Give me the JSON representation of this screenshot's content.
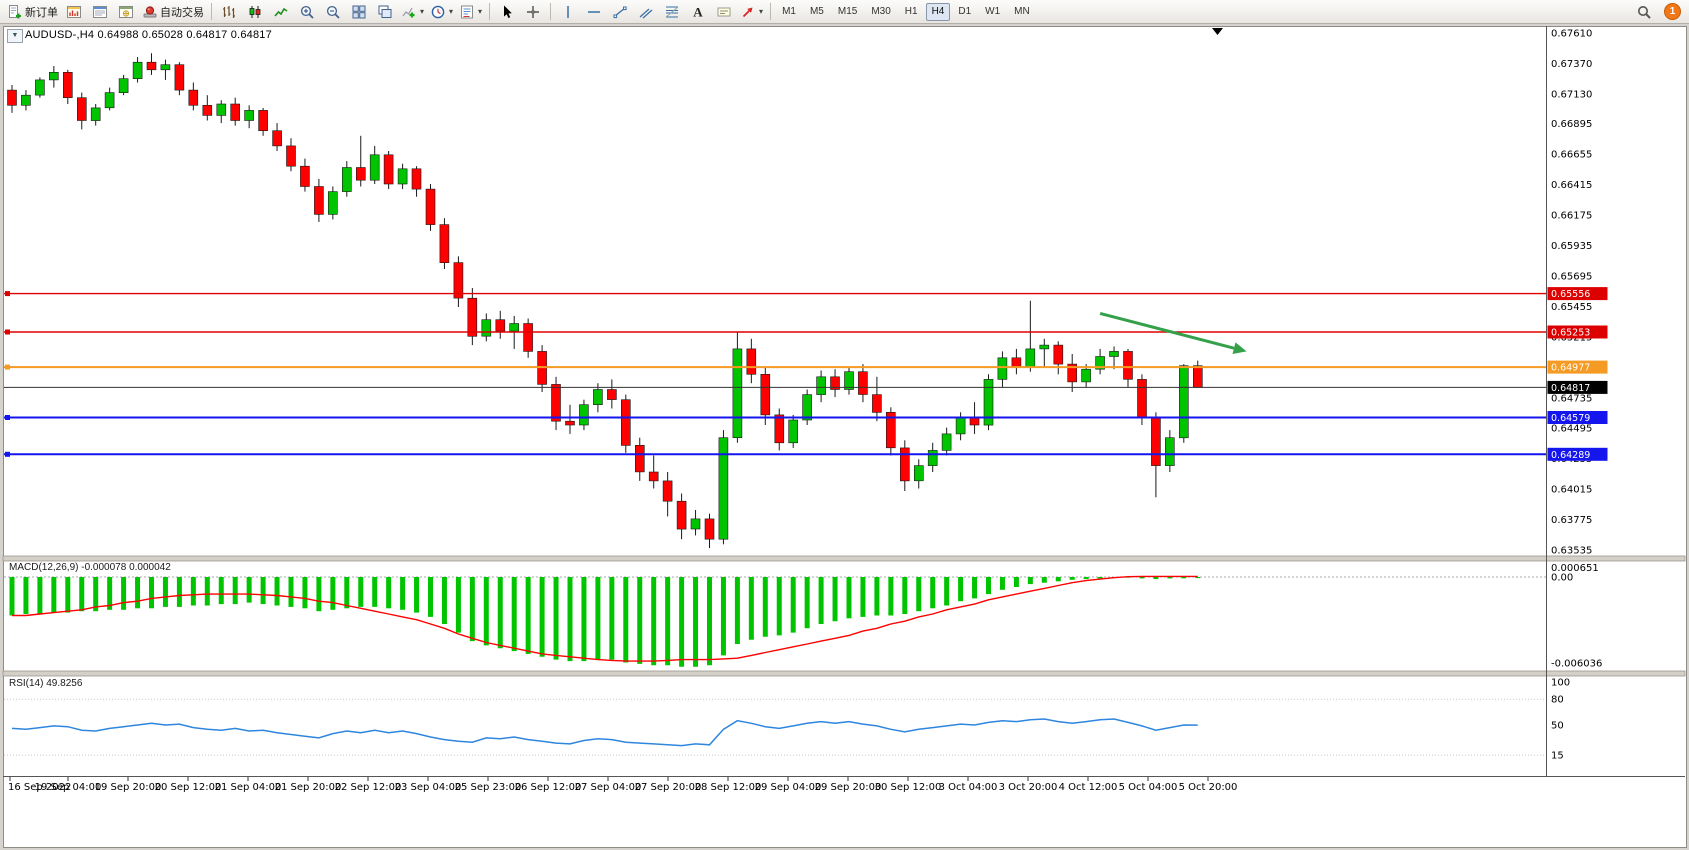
{
  "icons": {
    "dropdown_caret": "▾",
    "one_click_caret": "▼"
  },
  "toolbar": {
    "left_items": [
      {
        "type": "labeled-button",
        "name": "new-order-button",
        "icon": "new-order-icon",
        "label": "新订单"
      },
      {
        "type": "button",
        "name": "market-watch-button",
        "icon": "market-watch-icon"
      },
      {
        "type": "button",
        "name": "data-window-button",
        "icon": "data-window-icon"
      },
      {
        "type": "button",
        "name": "navigator-button",
        "icon": "navigator-icon"
      },
      {
        "type": "labeled-button",
        "name": "auto-trading-button",
        "icon": "auto-trading-icon",
        "label": "自动交易"
      },
      {
        "type": "separator"
      },
      {
        "type": "button",
        "name": "bar-chart-button",
        "icon": "bar-chart-icon"
      },
      {
        "type": "button",
        "name": "candlestick-chart-button",
        "icon": "candlestick-icon"
      },
      {
        "type": "button",
        "name": "line-chart-button",
        "icon": "line-chart-icon"
      },
      {
        "type": "button",
        "name": "zoom-in-button",
        "icon": "zoom-in-icon"
      },
      {
        "type": "button",
        "name": "zoom-out-button",
        "icon": "zoom-out-icon"
      },
      {
        "type": "button",
        "name": "tile-windows-button",
        "icon": "tile-windows-icon"
      },
      {
        "type": "button",
        "name": "cascade-windows-button",
        "icon": "cascade-windows-icon"
      },
      {
        "type": "dropdown-button",
        "name": "indicators-button",
        "icon": "indicators-icon"
      },
      {
        "type": "dropdown-button",
        "name": "periods-button",
        "icon": "clock-icon"
      },
      {
        "type": "dropdown-button",
        "name": "templates-button",
        "icon": "template-icon"
      },
      {
        "type": "separator"
      },
      {
        "type": "button",
        "name": "cursor-button",
        "icon": "cursor-icon"
      },
      {
        "type": "button",
        "name": "crosshair-button",
        "icon": "crosshair-icon"
      },
      {
        "type": "separator"
      },
      {
        "type": "button",
        "name": "vertical-line-button",
        "icon": "vertical-line-icon"
      },
      {
        "type": "button",
        "name": "horizontal-line-button",
        "icon": "horizontal-line-icon"
      },
      {
        "type": "button",
        "name": "trendline-button",
        "icon": "trendline-icon"
      },
      {
        "type": "button",
        "name": "channel-button",
        "icon": "channel-icon"
      },
      {
        "type": "button",
        "name": "fibonacci-button",
        "icon": "fibonacci-icon"
      },
      {
        "type": "button",
        "name": "text-button",
        "icon": "text-icon"
      },
      {
        "type": "button",
        "name": "text-label-button",
        "icon": "text-label-icon"
      },
      {
        "type": "dropdown-button",
        "name": "arrows-button",
        "icon": "arrow-shape-icon"
      },
      {
        "type": "separator"
      }
    ],
    "timeframes": [
      {
        "label": "M1"
      },
      {
        "label": "M5"
      },
      {
        "label": "M15"
      },
      {
        "label": "M30"
      },
      {
        "label": "H1"
      },
      {
        "label": "H4",
        "active": true
      },
      {
        "label": "D1"
      },
      {
        "label": "W1"
      },
      {
        "label": "MN"
      }
    ],
    "right": {
      "search_icon": "search-icon",
      "badge_count": "1"
    }
  },
  "chart_data": [
    {
      "name": "price",
      "type": "candlestick",
      "symbol": "AUDUSD-",
      "timeframe": "H4",
      "title": "AUDUSD-,H4  0.64988 0.65028 0.64817 0.64817",
      "up_color": "#00c400",
      "down_color": "#ff0000",
      "wick_color": "#1a1a1a",
      "y_axis_labels": [
        "0.67610",
        "0.67370",
        "0.67130",
        "0.66895",
        "0.66655",
        "0.66415",
        "0.66175",
        "0.65935",
        "0.65695",
        "0.65455",
        "0.65215",
        "0.64975",
        "0.64735",
        "0.64495",
        "0.64255",
        "0.64015",
        "0.63775",
        "0.63535"
      ],
      "ylim": [
        0.63535,
        0.6761
      ],
      "x_labels": [
        "16 Sep 2022",
        "19 Sep 04:00",
        "19 Sep 20:00",
        "20 Sep 12:00",
        "21 Sep 04:00",
        "21 Sep 20:00",
        "22 Sep 12:00",
        "23 Sep 04:00",
        "25 Sep 23:00",
        "26 Sep 12:00",
        "27 Sep 04:00",
        "27 Sep 20:00",
        "28 Sep 12:00",
        "29 Sep 04:00",
        "29 Sep 20:00",
        "30 Sep 12:00",
        "3 Oct 04:00",
        "3 Oct 20:00",
        "4 Oct 12:00",
        "5 Oct 04:00",
        "5 Oct 20:00"
      ],
      "candles_ohlc": [
        [
          0.6716,
          0.672,
          0.6698,
          0.6704
        ],
        [
          0.6704,
          0.6716,
          0.67,
          0.6712
        ],
        [
          0.6712,
          0.6726,
          0.671,
          0.6724
        ],
        [
          0.6724,
          0.6735,
          0.6718,
          0.673
        ],
        [
          0.673,
          0.6732,
          0.6705,
          0.671
        ],
        [
          0.671,
          0.6714,
          0.6685,
          0.6692
        ],
        [
          0.6692,
          0.6705,
          0.6688,
          0.6702
        ],
        [
          0.6702,
          0.6718,
          0.67,
          0.6714
        ],
        [
          0.6714,
          0.6728,
          0.6712,
          0.6725
        ],
        [
          0.6725,
          0.6742,
          0.6722,
          0.6738
        ],
        [
          0.6738,
          0.6745,
          0.6728,
          0.6732
        ],
        [
          0.6732,
          0.674,
          0.6724,
          0.6736
        ],
        [
          0.6736,
          0.6738,
          0.6712,
          0.6716
        ],
        [
          0.6716,
          0.6722,
          0.67,
          0.6704
        ],
        [
          0.6704,
          0.6712,
          0.6692,
          0.6696
        ],
        [
          0.6696,
          0.6708,
          0.669,
          0.6705
        ],
        [
          0.6705,
          0.671,
          0.6688,
          0.6692
        ],
        [
          0.6692,
          0.6704,
          0.6686,
          0.67
        ],
        [
          0.67,
          0.6702,
          0.668,
          0.6684
        ],
        [
          0.6684,
          0.669,
          0.6668,
          0.6672
        ],
        [
          0.6672,
          0.6678,
          0.6652,
          0.6656
        ],
        [
          0.6656,
          0.6662,
          0.6636,
          0.664
        ],
        [
          0.664,
          0.6646,
          0.6612,
          0.6618
        ],
        [
          0.6618,
          0.664,
          0.6614,
          0.6636
        ],
        [
          0.6636,
          0.666,
          0.6632,
          0.6655
        ],
        [
          0.6655,
          0.668,
          0.664,
          0.6645
        ],
        [
          0.6645,
          0.6672,
          0.6642,
          0.6665
        ],
        [
          0.6665,
          0.6668,
          0.6638,
          0.6642
        ],
        [
          0.6642,
          0.6658,
          0.6638,
          0.6654
        ],
        [
          0.6654,
          0.6656,
          0.6632,
          0.6638
        ],
        [
          0.6638,
          0.6642,
          0.6605,
          0.661
        ],
        [
          0.661,
          0.6615,
          0.6575,
          0.658
        ],
        [
          0.658,
          0.6585,
          0.6545,
          0.6552
        ],
        [
          0.6552,
          0.656,
          0.6515,
          0.6522
        ],
        [
          0.6522,
          0.654,
          0.6518,
          0.6535
        ],
        [
          0.6535,
          0.6542,
          0.652,
          0.6526
        ],
        [
          0.6526,
          0.6538,
          0.6512,
          0.6532
        ],
        [
          0.6532,
          0.6536,
          0.6505,
          0.651
        ],
        [
          0.651,
          0.6515,
          0.6478,
          0.6484
        ],
        [
          0.6484,
          0.649,
          0.6448,
          0.6455
        ],
        [
          0.6455,
          0.6468,
          0.6445,
          0.6452
        ],
        [
          0.6452,
          0.6472,
          0.6448,
          0.6468
        ],
        [
          0.6468,
          0.6485,
          0.6462,
          0.648
        ],
        [
          0.648,
          0.6488,
          0.6465,
          0.6472
        ],
        [
          0.6472,
          0.6476,
          0.643,
          0.6436
        ],
        [
          0.6436,
          0.6442,
          0.6408,
          0.6415
        ],
        [
          0.6415,
          0.6428,
          0.6402,
          0.6408
        ],
        [
          0.6408,
          0.6415,
          0.638,
          0.6392
        ],
        [
          0.6392,
          0.6398,
          0.6362,
          0.637
        ],
        [
          0.637,
          0.6385,
          0.6365,
          0.6378
        ],
        [
          0.6378,
          0.6382,
          0.6355,
          0.6362
        ],
        [
          0.6362,
          0.6448,
          0.6358,
          0.6442
        ],
        [
          0.6442,
          0.6525,
          0.6438,
          0.6512
        ],
        [
          0.6512,
          0.652,
          0.6485,
          0.6492
        ],
        [
          0.6492,
          0.6498,
          0.6452,
          0.646
        ],
        [
          0.646,
          0.6465,
          0.6432,
          0.6438
        ],
        [
          0.6438,
          0.646,
          0.6434,
          0.6456
        ],
        [
          0.6456,
          0.648,
          0.6452,
          0.6476
        ],
        [
          0.6476,
          0.6495,
          0.647,
          0.649
        ],
        [
          0.649,
          0.6496,
          0.6474,
          0.648
        ],
        [
          0.648,
          0.6498,
          0.6476,
          0.6494
        ],
        [
          0.6494,
          0.65,
          0.647,
          0.6476
        ],
        [
          0.6476,
          0.649,
          0.6455,
          0.6462
        ],
        [
          0.6462,
          0.6466,
          0.6428,
          0.6434
        ],
        [
          0.6434,
          0.644,
          0.64,
          0.6408
        ],
        [
          0.6408,
          0.6425,
          0.6402,
          0.642
        ],
        [
          0.642,
          0.6438,
          0.6415,
          0.6432
        ],
        [
          0.6432,
          0.645,
          0.6428,
          0.6445
        ],
        [
          0.6445,
          0.6462,
          0.644,
          0.6458
        ],
        [
          0.6458,
          0.647,
          0.6445,
          0.6452
        ],
        [
          0.6452,
          0.6492,
          0.6448,
          0.6488
        ],
        [
          0.6488,
          0.651,
          0.6482,
          0.6505
        ],
        [
          0.6505,
          0.6512,
          0.6492,
          0.6498
        ],
        [
          0.6498,
          0.655,
          0.6494,
          0.6512
        ],
        [
          0.6512,
          0.652,
          0.6498,
          0.6515
        ],
        [
          0.6515,
          0.6518,
          0.6492,
          0.65
        ],
        [
          0.65,
          0.6508,
          0.6478,
          0.6486
        ],
        [
          0.6486,
          0.65,
          0.6482,
          0.6496
        ],
        [
          0.6496,
          0.6512,
          0.6492,
          0.6506
        ],
        [
          0.6506,
          0.6514,
          0.6496,
          0.651
        ],
        [
          0.651,
          0.6512,
          0.6482,
          0.6488
        ],
        [
          0.6488,
          0.6492,
          0.6452,
          0.6458
        ],
        [
          0.6458,
          0.6462,
          0.6395,
          0.642
        ],
        [
          0.642,
          0.6448,
          0.6415,
          0.6442
        ],
        [
          0.6442,
          0.65,
          0.6438,
          0.64988
        ],
        [
          0.64988,
          0.65028,
          0.64817,
          0.64817
        ]
      ],
      "horizontal_lines": [
        {
          "price": 0.65556,
          "label": "0.65556",
          "color": "#dd0000",
          "width": 1.4
        },
        {
          "price": 0.65253,
          "label": "0.65253",
          "color": "#dd0000",
          "width": 1.4
        },
        {
          "price": 0.64977,
          "label": "0.64977",
          "color": "#f59a23",
          "width": 2
        },
        {
          "price": 0.64579,
          "label": "0.64579",
          "color": "#1515ee",
          "width": 2
        },
        {
          "price": 0.64289,
          "label": "0.64289",
          "color": "#1515ee",
          "width": 2
        }
      ],
      "current_price": {
        "label": "0.64817",
        "value": 0.64817,
        "color": "#000000"
      },
      "trend_arrow": {
        "from_index": 78,
        "from_price": 0.654,
        "to_index": 88.5,
        "to_price": 0.651,
        "color": "#35a04a",
        "width": 3
      }
    },
    {
      "name": "macd",
      "type": "bar",
      "label_text": "MACD(12,26,9) -0.000078 0.000042",
      "histogram_color": "#00c400",
      "signal_color": "#ff0000",
      "axis_labels": [
        {
          "value": 0.000651,
          "text": "0.000651"
        },
        {
          "value": 0,
          "text": "0.00"
        },
        {
          "value": -0.006036,
          "text": "-0.006036"
        }
      ],
      "histogram": [
        -0.0027,
        -0.0026,
        -0.0026,
        -0.0025,
        -0.0025,
        -0.0024,
        -0.0024,
        -0.0023,
        -0.0023,
        -0.0022,
        -0.0022,
        -0.0021,
        -0.0021,
        -0.002,
        -0.002,
        -0.0019,
        -0.0019,
        -0.0018,
        -0.0019,
        -0.002,
        -0.0021,
        -0.0022,
        -0.0024,
        -0.0023,
        -0.0022,
        -0.0021,
        -0.0021,
        -0.0022,
        -0.0023,
        -0.0025,
        -0.0028,
        -0.0033,
        -0.0039,
        -0.0045,
        -0.0048,
        -0.005,
        -0.0052,
        -0.0054,
        -0.0056,
        -0.0058,
        -0.0059,
        -0.0059,
        -0.0058,
        -0.0058,
        -0.006,
        -0.0061,
        -0.0062,
        -0.0062,
        -0.0063,
        -0.0063,
        -0.0062,
        -0.0055,
        -0.0047,
        -0.0044,
        -0.0042,
        -0.0041,
        -0.0039,
        -0.0036,
        -0.0033,
        -0.0031,
        -0.0029,
        -0.0028,
        -0.0027,
        -0.0027,
        -0.0026,
        -0.0024,
        -0.0022,
        -0.002,
        -0.0017,
        -0.0015,
        -0.0012,
        -0.0009,
        -0.0007,
        -0.0005,
        -0.0004,
        -0.0003,
        -0.0002,
        -0.00015,
        -0.0001,
        -5e-05,
        -5e-05,
        -0.0001,
        -0.00015,
        -0.0001,
        -9e-05,
        -7.8e-05
      ],
      "signal": [
        -0.0027,
        -0.0027,
        -0.0026,
        -0.0025,
        -0.0024,
        -0.0023,
        -0.0021,
        -0.002,
        -0.0018,
        -0.0017,
        -0.0015,
        -0.0014,
        -0.0013,
        -0.00125,
        -0.0012,
        -0.0012,
        -0.0012,
        -0.0012,
        -0.00125,
        -0.0013,
        -0.0014,
        -0.0015,
        -0.0017,
        -0.0018,
        -0.002,
        -0.0022,
        -0.0024,
        -0.0026,
        -0.0028,
        -0.003,
        -0.0033,
        -0.0036,
        -0.004,
        -0.0043,
        -0.0046,
        -0.0048,
        -0.005,
        -0.0052,
        -0.0054,
        -0.0055,
        -0.0056,
        -0.0057,
        -0.0058,
        -0.00585,
        -0.0059,
        -0.0059,
        -0.0059,
        -0.00585,
        -0.0058,
        -0.0058,
        -0.0058,
        -0.00575,
        -0.0057,
        -0.0055,
        -0.0053,
        -0.0051,
        -0.0049,
        -0.0047,
        -0.0045,
        -0.0043,
        -0.0041,
        -0.0038,
        -0.0036,
        -0.0033,
        -0.0031,
        -0.0028,
        -0.0026,
        -0.0023,
        -0.0021,
        -0.0019,
        -0.0016,
        -0.0014,
        -0.0012,
        -0.001,
        -0.0008,
        -0.0006,
        -0.0004,
        -0.00025,
        -0.00015,
        -5e-05,
        2e-05,
        4e-05,
        4e-05,
        4.2e-05,
        4.2e-05,
        4.2e-05
      ]
    },
    {
      "name": "rsi",
      "type": "line",
      "label_text": "RSI(14) 49.8256",
      "line_color": "#2e86de",
      "axis_labels": [
        {
          "value": 100,
          "text": "100"
        },
        {
          "value": 80,
          "text": "80"
        },
        {
          "value": 50,
          "text": "50"
        },
        {
          "value": 15,
          "text": "15"
        }
      ],
      "levels": [
        80,
        15
      ],
      "values": [
        46,
        45,
        47,
        49,
        48,
        44,
        43,
        46,
        48,
        50,
        52,
        50,
        51,
        47,
        45,
        44,
        46,
        43,
        44,
        41,
        39,
        37,
        35,
        40,
        43,
        41,
        44,
        41,
        43,
        40,
        36,
        33,
        31,
        30,
        35,
        34,
        36,
        33,
        31,
        29,
        28,
        32,
        34,
        33,
        30,
        29,
        28,
        27,
        26,
        28,
        27,
        45,
        55,
        52,
        48,
        46,
        49,
        52,
        54,
        52,
        54,
        51,
        49,
        45,
        42,
        45,
        47,
        49,
        51,
        50,
        53,
        55,
        54,
        56,
        57,
        54,
        52,
        54,
        56,
        57,
        53,
        49,
        44,
        47,
        50,
        49.8256
      ]
    }
  ]
}
